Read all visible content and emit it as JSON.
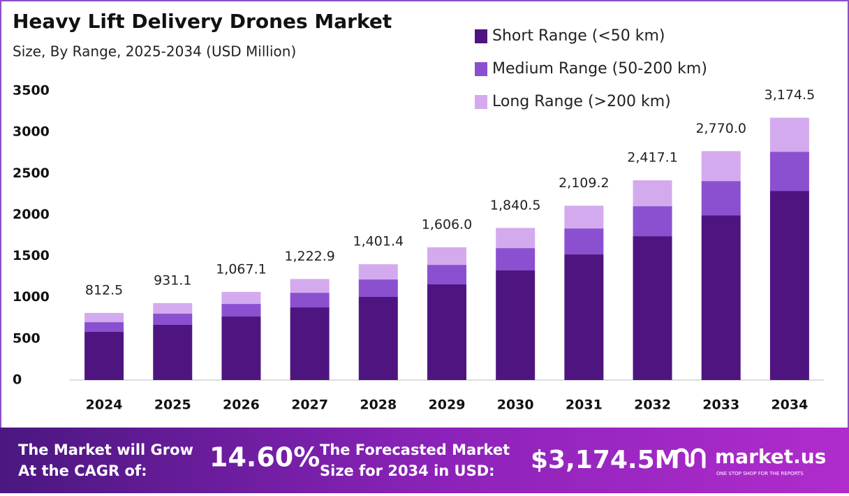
{
  "chart_data": {
    "type": "stacked_bar",
    "title": "Heavy Lift Delivery Drones Market",
    "subtitle": "Size, By Range, 2025-2034 (USD Million)",
    "categories": [
      "2024",
      "2025",
      "2026",
      "2027",
      "2028",
      "2029",
      "2030",
      "2031",
      "2032",
      "2033",
      "2034"
    ],
    "series": [
      {
        "name": "Short Range (<50 km)",
        "color": "#4e1580",
        "values": [
          583,
          668,
          769,
          879,
          1006,
          1158,
          1327,
          1521,
          1741,
          1994,
          2290
        ]
      },
      {
        "name": "Medium Range (50-200 km)",
        "color": "#8b50d0",
        "values": [
          118,
          135,
          152,
          177,
          211,
          236,
          270,
          313,
          363,
          414,
          473
        ]
      },
      {
        "name": "Long Range (>200 km)",
        "color": "#d4aaee",
        "values": [
          111.5,
          128.1,
          146.1,
          166.9,
          184.4,
          212,
          243.5,
          275.2,
          313.1,
          362,
          411.5
        ]
      }
    ],
    "totals": [
      812.5,
      931.1,
      1067.1,
      1222.9,
      1401.4,
      1606.0,
      1840.5,
      2109.2,
      2417.1,
      2770.0,
      3174.5
    ],
    "total_labels": [
      "812.5",
      "931.1",
      "1,067.1",
      "1,222.9",
      "1,401.4",
      "1,606.0",
      "1,840.5",
      "2,109.2",
      "2,417.1",
      "2,770.0",
      "3,174.5"
    ],
    "ylim": [
      0,
      3500
    ],
    "yticks": [
      0,
      500,
      1000,
      1500,
      2000,
      2500,
      3000,
      3500
    ],
    "legend": "top-right"
  },
  "footer": {
    "cagr_text": [
      "The Market will Grow",
      "At the CAGR of:"
    ],
    "cagr_value": "14.60%",
    "forecast_text": [
      "The Forecasted Market",
      "Size for 2034 in USD:"
    ],
    "forecast_value": "$3,174.5M",
    "brand": "market.us",
    "tagline": "ONE STOP SHOP FOR THE REPORTS"
  }
}
